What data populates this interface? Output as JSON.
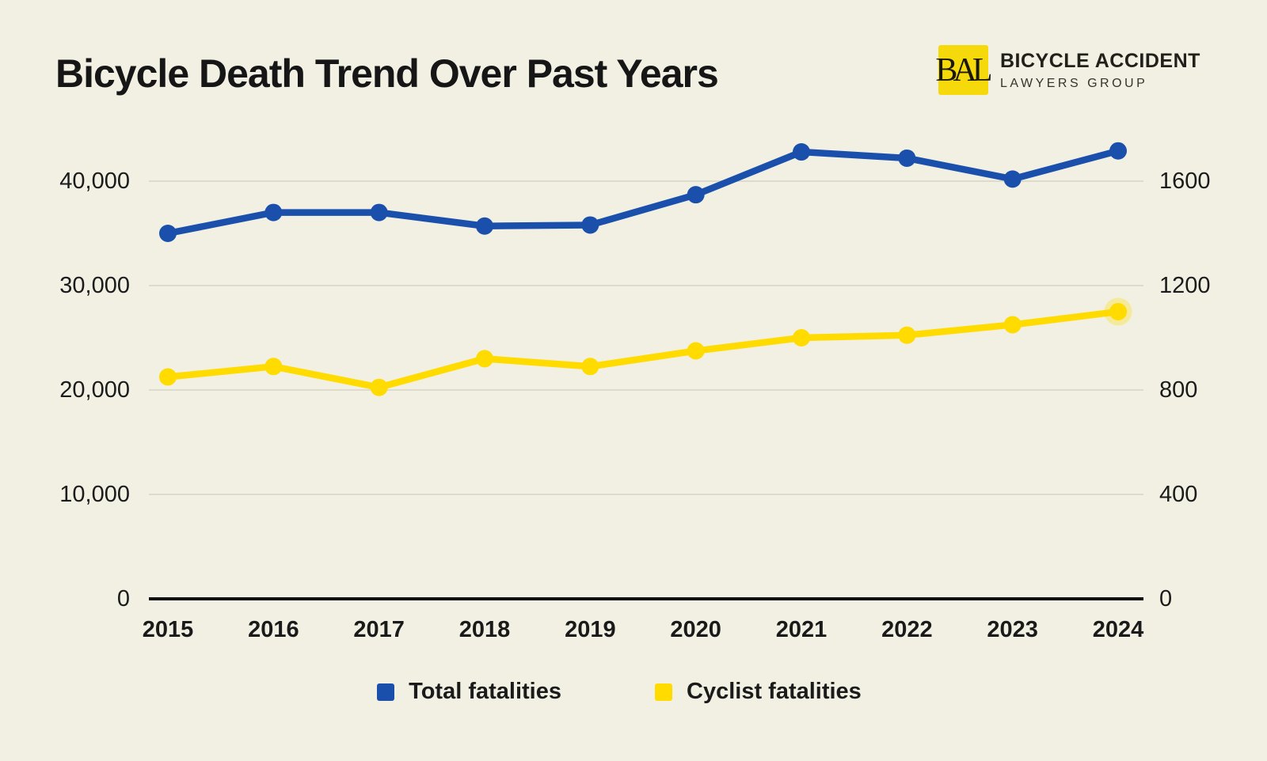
{
  "header": {
    "title": "Bicycle Death Trend Over Past Years",
    "logo": {
      "monogram": "BAL",
      "line1": "BICYCLE ACCIDENT",
      "line2": "LAWYERS GROUP",
      "square_color": "#f6d90a",
      "text_color": "#21201b"
    }
  },
  "colors": {
    "background": "#f1f0e3",
    "gridline": "#dcdbcc",
    "axis": "#101010",
    "text": "#1b1b1b"
  },
  "chart_data": {
    "type": "line",
    "title": "Bicycle Death Trend Over Past Years",
    "x": [
      "2015",
      "2016",
      "2017",
      "2018",
      "2019",
      "2020",
      "2021",
      "2022",
      "2023",
      "2024"
    ],
    "series": [
      {
        "name": "Total fatalities",
        "axis": "left",
        "color": "#1a50ac",
        "values": [
          35000,
          37000,
          37000,
          35700,
          35800,
          38700,
          42800,
          42200,
          40200,
          42900
        ]
      },
      {
        "name": "Cyclist fatalities",
        "axis": "right",
        "color": "#ffdb00",
        "values": [
          850,
          890,
          810,
          920,
          890,
          950,
          1000,
          1010,
          1050,
          1100
        ],
        "endpoint_halo": true
      }
    ],
    "left_axis": {
      "ticks": [
        {
          "label": "40,000",
          "value": 40000
        },
        {
          "label": "30,000",
          "value": 30000
        },
        {
          "label": "20,000",
          "value": 20000
        },
        {
          "label": "10,000",
          "value": 10000
        },
        {
          "label": "0",
          "value": 0
        }
      ],
      "range": [
        0,
        43500
      ]
    },
    "right_axis": {
      "ticks": [
        {
          "label": "1600",
          "value": 1600
        },
        {
          "label": "1200",
          "value": 1200
        },
        {
          "label": "800",
          "value": 800
        },
        {
          "label": "400",
          "value": 400
        },
        {
          "label": "0",
          "value": 0
        }
      ],
      "range": [
        0,
        1740
      ],
      "scale_factor_to_left": 25
    },
    "grid": "horizontal",
    "legend_position": "bottom"
  }
}
